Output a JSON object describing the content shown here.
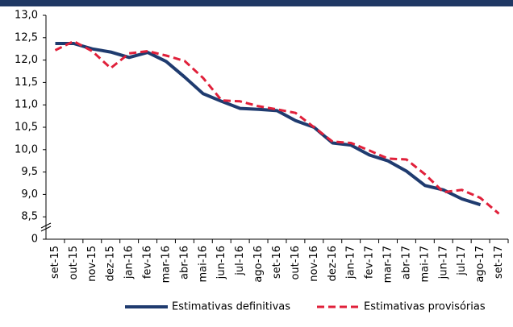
{
  "chart_data": {
    "type": "line",
    "categories": [
      "set-15",
      "out-15",
      "nov-15",
      "dez-15",
      "jan-16",
      "fev-16",
      "mar-16",
      "abr-16",
      "mai-16",
      "jun-16",
      "jul-16",
      "ago-16",
      "set-16",
      "out-16",
      "nov-16",
      "dez-16",
      "jan-17",
      "fev-17",
      "mar-17",
      "abr-17",
      "mai-17",
      "jun-17",
      "jul-17",
      "ago-17",
      "set-17"
    ],
    "series": [
      {
        "name": "Estimativas definitivas",
        "color": "#1f3b6f",
        "dash": false,
        "values": [
          12.37,
          12.37,
          12.25,
          12.18,
          12.06,
          12.17,
          11.97,
          11.62,
          11.25,
          11.08,
          10.92,
          10.9,
          10.87,
          10.65,
          10.5,
          10.15,
          10.1,
          9.88,
          9.75,
          9.52,
          9.2,
          9.1,
          8.9,
          8.77,
          null
        ]
      },
      {
        "name": "Estimativas provisórias",
        "color": "#e0203a",
        "dash": true,
        "values": [
          12.22,
          12.42,
          12.2,
          11.82,
          12.15,
          12.2,
          12.1,
          11.98,
          11.6,
          11.1,
          11.08,
          10.97,
          10.9,
          10.82,
          10.5,
          10.18,
          10.15,
          9.98,
          9.8,
          9.78,
          9.45,
          9.05,
          9.1,
          8.92,
          8.57
        ]
      }
    ],
    "ylim": [
      0,
      13
    ],
    "ybreak": [
      0,
      8
    ],
    "yticks": [
      0,
      {
        "value": 8.5,
        "label": "8,5"
      },
      {
        "value": 9,
        "label": "9,0"
      },
      {
        "value": 9.5,
        "label": "9,5"
      },
      {
        "value": 10,
        "label": "10,0"
      },
      {
        "value": 10.5,
        "label": "10,5"
      },
      {
        "value": 11,
        "label": "11,0"
      },
      {
        "value": 11.5,
        "label": "11,5"
      },
      {
        "value": 12,
        "label": "12,0"
      },
      {
        "value": 12.5,
        "label": "12,5"
      },
      {
        "value": 13,
        "label": "13,0"
      }
    ],
    "legend": "bottom"
  }
}
